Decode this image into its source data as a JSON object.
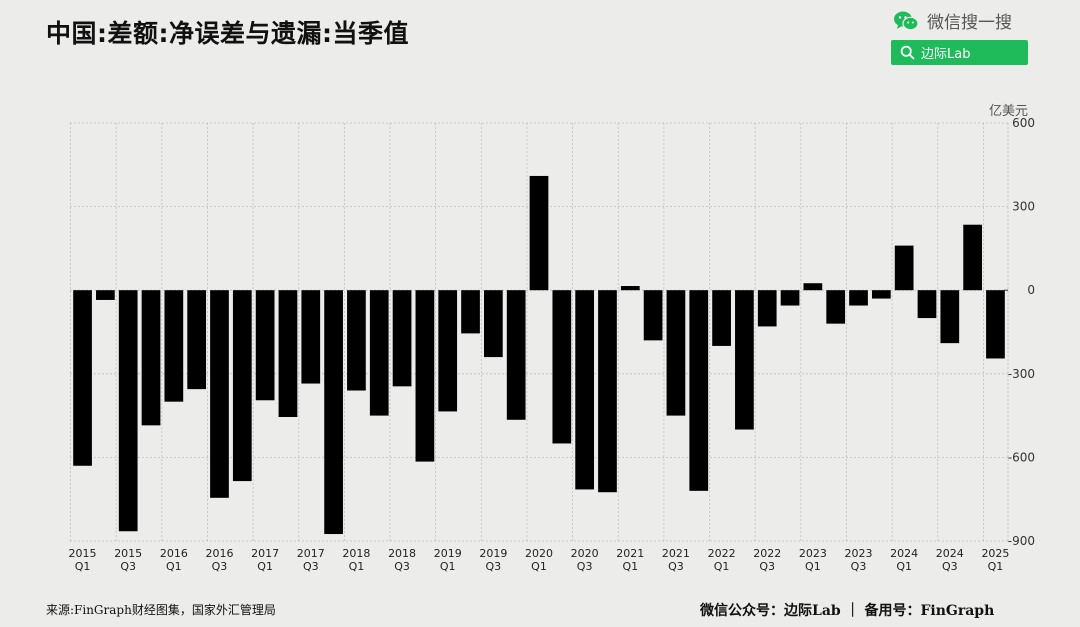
{
  "header": {
    "title": "中国:差额:净误差与遗漏:当季值",
    "wechat_label": "微信搜一搜",
    "search_button_label": "边际Lab"
  },
  "footer": {
    "source": "来源:FinGraph财经图集，国家外汇管理局",
    "credit": "微信公众号：边际Lab ｜ 备用号：FinGraph"
  },
  "colors": {
    "bar": "#000000",
    "accent": "#1fba5a",
    "background": "#ececea",
    "grid": "#bfbfbf"
  },
  "icons": {
    "wechat": "wechat-icon",
    "search": "search-icon"
  },
  "chart_data": {
    "type": "bar",
    "title": "中国:差额:净误差与遗漏:当季值",
    "unit_label": "亿美元",
    "y_axis_side": "right",
    "ylim": [
      -900,
      600
    ],
    "yticks": [
      600,
      300,
      0,
      -300,
      -600,
      -900
    ],
    "grid": true,
    "categories": [
      "2015Q1",
      "2015Q2",
      "2015Q3",
      "2015Q4",
      "2016Q1",
      "2016Q2",
      "2016Q3",
      "2016Q4",
      "2017Q1",
      "2017Q2",
      "2017Q3",
      "2017Q4",
      "2018Q1",
      "2018Q2",
      "2018Q3",
      "2018Q4",
      "2019Q1",
      "2019Q2",
      "2019Q3",
      "2019Q4",
      "2020Q1",
      "2020Q2",
      "2020Q3",
      "2020Q4",
      "2021Q1",
      "2021Q2",
      "2021Q3",
      "2021Q4",
      "2022Q1",
      "2022Q2",
      "2022Q3",
      "2022Q4",
      "2023Q1",
      "2023Q2",
      "2023Q3",
      "2023Q4",
      "2024Q1",
      "2024Q2",
      "2024Q3",
      "2024Q4",
      "2025Q1"
    ],
    "values": [
      -630,
      -35,
      -865,
      -485,
      -400,
      -355,
      -745,
      -685,
      -395,
      -455,
      -335,
      -875,
      -360,
      -450,
      -345,
      -615,
      -435,
      -155,
      -240,
      -465,
      410,
      -550,
      -715,
      -725,
      15,
      -180,
      -450,
      -720,
      -200,
      -500,
      -130,
      -55,
      25,
      -120,
      -55,
      -30,
      160,
      -100,
      -190,
      235,
      -245
    ],
    "x_tick_labels": [
      {
        "year": "2015",
        "q": "Q1"
      },
      {
        "year": "2015",
        "q": "Q3"
      },
      {
        "year": "2016",
        "q": "Q1"
      },
      {
        "year": "2016",
        "q": "Q3"
      },
      {
        "year": "2017",
        "q": "Q1"
      },
      {
        "year": "2017",
        "q": "Q3"
      },
      {
        "year": "2018",
        "q": "Q1"
      },
      {
        "year": "2018",
        "q": "Q3"
      },
      {
        "year": "2019",
        "q": "Q1"
      },
      {
        "year": "2019",
        "q": "Q3"
      },
      {
        "year": "2020",
        "q": "Q1"
      },
      {
        "year": "2020",
        "q": "Q3"
      },
      {
        "year": "2021",
        "q": "Q1"
      },
      {
        "year": "2021",
        "q": "Q3"
      },
      {
        "year": "2022",
        "q": "Q1"
      },
      {
        "year": "2022",
        "q": "Q3"
      },
      {
        "year": "2023",
        "q": "Q1"
      },
      {
        "year": "2023",
        "q": "Q3"
      },
      {
        "year": "2024",
        "q": "Q1"
      },
      {
        "year": "2024",
        "q": "Q3"
      },
      {
        "year": "2025",
        "q": "Q1"
      }
    ]
  }
}
